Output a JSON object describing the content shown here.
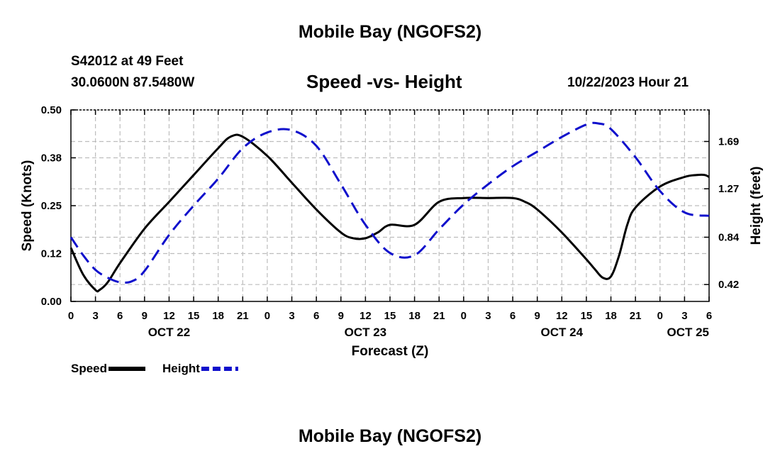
{
  "header": {
    "title": "Mobile Bay (NGOFS2)",
    "station": "S42012 at 49 Feet",
    "coords": "30.0600N  87.5480W",
    "subtitle": "Speed -vs- Height",
    "datetime": "10/22/2023 Hour 21"
  },
  "footer": {
    "title": "Mobile Bay (NGOFS2)"
  },
  "chart_data": {
    "type": "line",
    "title": "Speed -vs- Height",
    "xlabel": "Forecast (Z)",
    "ylabel": "Speed (Knots)",
    "y2label": "Height (feet)",
    "xlim": [
      0,
      78
    ],
    "ylim": [
      0,
      0.5
    ],
    "y2lim": [
      0.27,
      1.97
    ],
    "grid": true,
    "x_ticks": [
      0,
      3,
      6,
      9,
      12,
      15,
      18,
      21,
      24,
      27,
      30,
      33,
      36,
      39,
      42,
      45,
      48,
      51,
      54,
      57,
      60,
      63,
      66,
      69,
      72,
      75,
      78
    ],
    "x_tick_labels": [
      "0",
      "3",
      "6",
      "9",
      "12",
      "15",
      "18",
      "21",
      "0",
      "3",
      "6",
      "9",
      "12",
      "15",
      "18",
      "21",
      "0",
      "3",
      "6",
      "9",
      "12",
      "15",
      "18",
      "21",
      "0",
      "3",
      "6"
    ],
    "y_ticks": [
      0.0,
      0.125,
      0.25,
      0.375,
      0.5
    ],
    "y_tick_labels": [
      "0.00",
      "0.12",
      "0.25",
      "0.38",
      "0.50"
    ],
    "y2_ticks": [
      0.42,
      0.84,
      1.27,
      1.69
    ],
    "y2_tick_labels": [
      "0.42",
      "0.84",
      "1.27",
      "1.69"
    ],
    "day_labels": [
      {
        "x": 12,
        "label": "OCT 22"
      },
      {
        "x": 36,
        "label": "OCT 23"
      },
      {
        "x": 60,
        "label": "OCT 24"
      },
      {
        "x": 78,
        "label": "OCT 25"
      }
    ],
    "legend": [
      {
        "name": "Speed",
        "color": "#000000",
        "dash": false
      },
      {
        "name": "Height",
        "color": "#1010cc",
        "dash": true
      }
    ],
    "series": [
      {
        "name": "Speed",
        "axis": "left",
        "color": "#000000",
        "x": [
          0,
          1.5,
          3,
          3.5,
          4.5,
          6,
          9,
          12,
          15,
          18,
          19.5,
          21,
          24,
          27,
          30,
          33,
          34.5,
          36,
          37.5,
          39,
          42,
          45,
          48,
          51,
          54,
          55.5,
          57,
          60,
          63,
          64,
          65,
          66,
          67,
          68,
          69,
          72,
          75,
          76.5,
          77.5,
          78
        ],
        "values": [
          0.14,
          0.07,
          0.03,
          0.03,
          0.05,
          0.1,
          0.19,
          0.26,
          0.33,
          0.4,
          0.43,
          0.43,
          0.38,
          0.31,
          0.24,
          0.18,
          0.165,
          0.165,
          0.18,
          0.2,
          0.2,
          0.26,
          0.27,
          0.27,
          0.27,
          0.26,
          0.24,
          0.18,
          0.11,
          0.085,
          0.062,
          0.065,
          0.12,
          0.2,
          0.245,
          0.3,
          0.325,
          0.33,
          0.33,
          0.325
        ]
      },
      {
        "name": "Height",
        "axis": "right",
        "color": "#1010cc",
        "x": [
          0,
          1.5,
          3,
          4.5,
          6,
          7.5,
          9,
          12,
          15,
          18,
          21,
          24,
          27,
          30,
          33,
          36,
          39,
          42,
          45,
          48,
          51,
          54,
          57,
          60,
          63,
          64.5,
          66,
          69,
          72,
          75,
          78
        ],
        "values": [
          0.84,
          0.68,
          0.55,
          0.48,
          0.44,
          0.45,
          0.54,
          0.86,
          1.12,
          1.36,
          1.63,
          1.77,
          1.79,
          1.65,
          1.31,
          0.95,
          0.7,
          0.68,
          0.91,
          1.13,
          1.31,
          1.47,
          1.6,
          1.73,
          1.84,
          1.85,
          1.8,
          1.55,
          1.25,
          1.06,
          1.03
        ]
      }
    ]
  }
}
